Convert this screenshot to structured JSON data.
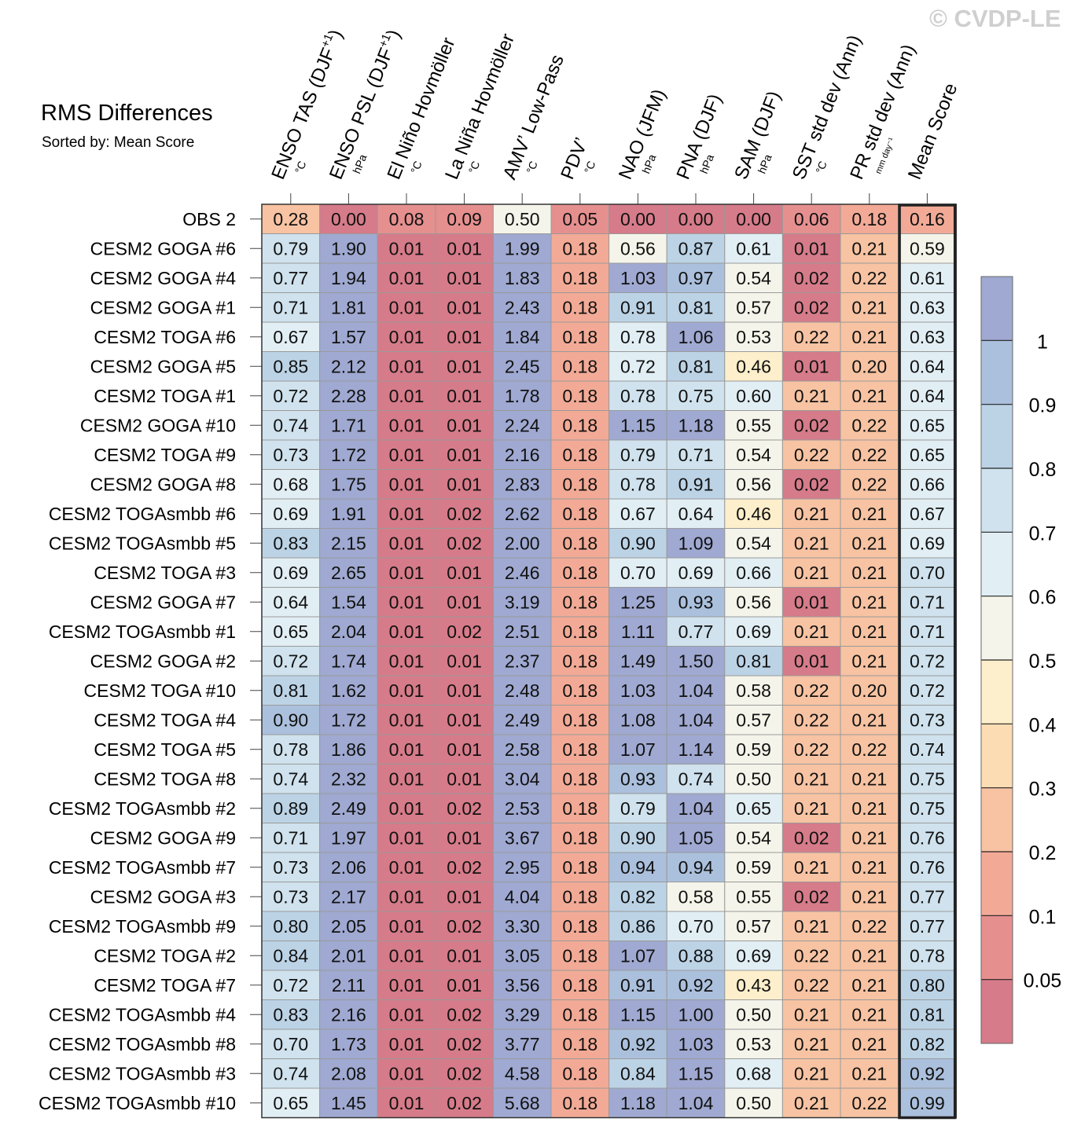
{
  "title": "RMS Differences",
  "subtitle": "Sorted by: Mean Score",
  "copyright": "© CVDP-LE",
  "chart_data": {
    "type": "heatmap",
    "title": "RMS Differences",
    "subtitle": "Sorted by: Mean Score",
    "columns": [
      {
        "label": "ENSO TAS (DJF",
        "sup": "+1",
        "close": ")",
        "unit": "°C"
      },
      {
        "label": "ENSO PSL (DJF",
        "sup": "+1",
        "close": ")",
        "unit": "hPa"
      },
      {
        "label": "El Niño Hovmöller",
        "sup": "",
        "close": "",
        "unit": "°C"
      },
      {
        "label": "La Niña Hovmöller",
        "sup": "",
        "close": "",
        "unit": "°C"
      },
      {
        "label": "AMV’ Low-Pass",
        "sup": "",
        "close": "",
        "unit": "°C"
      },
      {
        "label": "PDV’",
        "sup": "",
        "close": "",
        "unit": "°C"
      },
      {
        "label": "NAO (JFM)",
        "sup": "",
        "close": "",
        "unit": "hPa"
      },
      {
        "label": "PNA (DJF)",
        "sup": "",
        "close": "",
        "unit": "hPa"
      },
      {
        "label": "SAM (DJF)",
        "sup": "",
        "close": "",
        "unit": "hPa"
      },
      {
        "label": "SST std dev (Ann)",
        "sup": "",
        "close": "",
        "unit": "°C"
      },
      {
        "label": "PR std dev (Ann)",
        "sup": "",
        "close": "",
        "unit": "mm day⁻¹"
      },
      {
        "label": "Mean Score",
        "sup": "",
        "close": "",
        "unit": ""
      }
    ],
    "rows": [
      {
        "name": "OBS 2",
        "values": [
          0.28,
          0.0,
          0.08,
          0.09,
          0.5,
          0.05,
          0.0,
          0.0,
          0.0,
          0.06,
          0.18,
          0.16
        ],
        "scores": [
          0.25,
          0.02,
          0.08,
          0.09,
          0.52,
          0.06,
          0.02,
          0.02,
          0.02,
          0.06,
          0.18,
          0.16
        ]
      },
      {
        "name": "CESM2 GOGA #6",
        "values": [
          0.79,
          1.9,
          0.01,
          0.01,
          1.99,
          0.18,
          0.56,
          0.87,
          0.61,
          0.01,
          0.21,
          0.59
        ],
        "scores": [
          0.78,
          1.2,
          0.02,
          0.02,
          1.2,
          0.18,
          0.55,
          0.85,
          0.62,
          0.02,
          0.25,
          0.55
        ]
      },
      {
        "name": "CESM2 GOGA #4",
        "values": [
          0.77,
          1.94,
          0.01,
          0.01,
          1.83,
          0.18,
          1.03,
          0.97,
          0.54,
          0.02,
          0.22,
          0.61
        ],
        "scores": [
          0.78,
          1.2,
          0.02,
          0.02,
          1.2,
          0.18,
          1.05,
          0.95,
          0.55,
          0.02,
          0.25,
          0.62
        ]
      },
      {
        "name": "CESM2 GOGA #1",
        "values": [
          0.71,
          1.81,
          0.01,
          0.01,
          2.43,
          0.18,
          0.91,
          0.81,
          0.57,
          0.02,
          0.21,
          0.63
        ],
        "scores": [
          0.75,
          1.2,
          0.02,
          0.02,
          1.2,
          0.18,
          0.85,
          0.8,
          0.55,
          0.02,
          0.25,
          0.62
        ]
      },
      {
        "name": "CESM2 TOGA #6",
        "values": [
          0.67,
          1.57,
          0.01,
          0.01,
          1.84,
          0.18,
          0.78,
          1.06,
          0.53,
          0.22,
          0.21,
          0.63
        ],
        "scores": [
          0.65,
          1.2,
          0.02,
          0.02,
          1.2,
          0.18,
          0.65,
          1.05,
          0.55,
          0.25,
          0.25,
          0.62
        ]
      },
      {
        "name": "CESM2 GOGA #5",
        "values": [
          0.85,
          2.12,
          0.01,
          0.01,
          2.45,
          0.18,
          0.72,
          0.81,
          0.46,
          0.01,
          0.2,
          0.64
        ],
        "scores": [
          0.85,
          1.2,
          0.02,
          0.02,
          1.2,
          0.18,
          0.65,
          0.8,
          0.45,
          0.02,
          0.25,
          0.62
        ]
      },
      {
        "name": "CESM2 TOGA #1",
        "values": [
          0.72,
          2.28,
          0.01,
          0.01,
          1.78,
          0.18,
          0.78,
          0.75,
          0.6,
          0.21,
          0.21,
          0.64
        ],
        "scores": [
          0.75,
          1.2,
          0.02,
          0.02,
          1.2,
          0.18,
          0.75,
          0.75,
          0.65,
          0.25,
          0.25,
          0.62
        ]
      },
      {
        "name": "CESM2 GOGA #10",
        "values": [
          0.74,
          1.71,
          0.01,
          0.01,
          2.24,
          0.18,
          1.15,
          1.18,
          0.55,
          0.02,
          0.22,
          0.65
        ],
        "scores": [
          0.75,
          1.2,
          0.02,
          0.02,
          1.2,
          0.18,
          1.05,
          1.05,
          0.55,
          0.02,
          0.25,
          0.65
        ]
      },
      {
        "name": "CESM2 TOGA #9",
        "values": [
          0.73,
          1.72,
          0.01,
          0.01,
          2.16,
          0.18,
          0.79,
          0.71,
          0.54,
          0.22,
          0.22,
          0.65
        ],
        "scores": [
          0.75,
          1.2,
          0.02,
          0.02,
          1.2,
          0.18,
          0.75,
          0.75,
          0.55,
          0.25,
          0.25,
          0.65
        ]
      },
      {
        "name": "CESM2 GOGA #8",
        "values": [
          0.68,
          1.75,
          0.01,
          0.01,
          2.83,
          0.18,
          0.78,
          0.91,
          0.56,
          0.02,
          0.22,
          0.66
        ],
        "scores": [
          0.65,
          1.2,
          0.02,
          0.02,
          1.2,
          0.18,
          0.75,
          0.85,
          0.55,
          0.02,
          0.25,
          0.65
        ]
      },
      {
        "name": "CESM2 TOGAsmbb #6",
        "values": [
          0.69,
          1.91,
          0.01,
          0.02,
          2.62,
          0.18,
          0.67,
          0.64,
          0.46,
          0.21,
          0.21,
          0.67
        ],
        "scores": [
          0.65,
          1.2,
          0.02,
          0.02,
          1.2,
          0.18,
          0.65,
          0.65,
          0.45,
          0.25,
          0.25,
          0.65
        ]
      },
      {
        "name": "CESM2 TOGAsmbb #5",
        "values": [
          0.83,
          2.15,
          0.01,
          0.02,
          2.0,
          0.18,
          0.9,
          1.09,
          0.54,
          0.21,
          0.21,
          0.69
        ],
        "scores": [
          0.85,
          1.2,
          0.02,
          0.02,
          1.2,
          0.18,
          0.85,
          1.05,
          0.55,
          0.25,
          0.25,
          0.65
        ]
      },
      {
        "name": "CESM2 TOGA #3",
        "values": [
          0.69,
          2.65,
          0.01,
          0.01,
          2.46,
          0.18,
          0.7,
          0.69,
          0.66,
          0.21,
          0.21,
          0.7
        ],
        "scores": [
          0.65,
          1.2,
          0.02,
          0.02,
          1.2,
          0.18,
          0.65,
          0.65,
          0.65,
          0.25,
          0.25,
          0.75
        ]
      },
      {
        "name": "CESM2 GOGA #7",
        "values": [
          0.64,
          1.54,
          0.01,
          0.01,
          3.19,
          0.18,
          1.25,
          0.93,
          0.56,
          0.01,
          0.21,
          0.71
        ],
        "scores": [
          0.65,
          1.2,
          0.02,
          0.02,
          1.2,
          0.18,
          1.05,
          0.95,
          0.55,
          0.02,
          0.25,
          0.75
        ]
      },
      {
        "name": "CESM2 TOGAsmbb #1",
        "values": [
          0.65,
          2.04,
          0.01,
          0.02,
          2.51,
          0.18,
          1.11,
          0.77,
          0.69,
          0.21,
          0.21,
          0.71
        ],
        "scores": [
          0.65,
          1.2,
          0.02,
          0.02,
          1.2,
          0.18,
          1.05,
          0.75,
          0.65,
          0.25,
          0.25,
          0.75
        ]
      },
      {
        "name": "CESM2 GOGA #2",
        "values": [
          0.72,
          1.74,
          0.01,
          0.01,
          2.37,
          0.18,
          1.49,
          1.5,
          0.81,
          0.01,
          0.21,
          0.72
        ],
        "scores": [
          0.75,
          1.2,
          0.02,
          0.02,
          1.2,
          0.18,
          1.05,
          1.05,
          0.85,
          0.02,
          0.25,
          0.75
        ]
      },
      {
        "name": "CESM2 TOGA #10",
        "values": [
          0.81,
          1.62,
          0.01,
          0.01,
          2.48,
          0.18,
          1.03,
          1.04,
          0.58,
          0.22,
          0.2,
          0.72
        ],
        "scores": [
          0.85,
          1.2,
          0.02,
          0.02,
          1.2,
          0.18,
          1.05,
          1.05,
          0.55,
          0.25,
          0.25,
          0.75
        ]
      },
      {
        "name": "CESM2 TOGA #4",
        "values": [
          0.9,
          1.72,
          0.01,
          0.01,
          2.49,
          0.18,
          1.08,
          1.04,
          0.57,
          0.22,
          0.21,
          0.73
        ],
        "scores": [
          0.95,
          1.2,
          0.02,
          0.02,
          1.2,
          0.18,
          1.05,
          1.05,
          0.55,
          0.25,
          0.25,
          0.75
        ]
      },
      {
        "name": "CESM2 TOGA #5",
        "values": [
          0.78,
          1.86,
          0.01,
          0.01,
          2.58,
          0.18,
          1.07,
          1.14,
          0.59,
          0.22,
          0.22,
          0.74
        ],
        "scores": [
          0.75,
          1.2,
          0.02,
          0.02,
          1.2,
          0.18,
          1.05,
          1.05,
          0.55,
          0.25,
          0.25,
          0.75
        ]
      },
      {
        "name": "CESM2 TOGA #8",
        "values": [
          0.74,
          2.32,
          0.01,
          0.01,
          3.04,
          0.18,
          0.93,
          0.74,
          0.5,
          0.21,
          0.21,
          0.75
        ],
        "scores": [
          0.75,
          1.2,
          0.02,
          0.02,
          1.2,
          0.18,
          0.95,
          0.75,
          0.55,
          0.25,
          0.25,
          0.75
        ]
      },
      {
        "name": "CESM2 TOGAsmbb #2",
        "values": [
          0.89,
          2.49,
          0.01,
          0.02,
          2.53,
          0.18,
          0.79,
          1.04,
          0.65,
          0.21,
          0.21,
          0.75
        ],
        "scores": [
          0.85,
          1.2,
          0.02,
          0.02,
          1.2,
          0.18,
          0.75,
          1.05,
          0.65,
          0.25,
          0.25,
          0.75
        ]
      },
      {
        "name": "CESM2 GOGA #9",
        "values": [
          0.71,
          1.97,
          0.01,
          0.01,
          3.67,
          0.18,
          0.9,
          1.05,
          0.54,
          0.02,
          0.21,
          0.76
        ],
        "scores": [
          0.75,
          1.2,
          0.02,
          0.02,
          1.2,
          0.18,
          0.85,
          1.05,
          0.55,
          0.02,
          0.25,
          0.75
        ]
      },
      {
        "name": "CESM2 TOGAsmbb #7",
        "values": [
          0.73,
          2.06,
          0.01,
          0.02,
          2.95,
          0.18,
          0.94,
          0.94,
          0.59,
          0.21,
          0.21,
          0.76
        ],
        "scores": [
          0.75,
          1.2,
          0.02,
          0.02,
          1.2,
          0.18,
          0.95,
          0.95,
          0.55,
          0.25,
          0.25,
          0.75
        ]
      },
      {
        "name": "CESM2 GOGA #3",
        "values": [
          0.73,
          2.17,
          0.01,
          0.01,
          4.04,
          0.18,
          0.82,
          0.58,
          0.55,
          0.02,
          0.21,
          0.77
        ],
        "scores": [
          0.75,
          1.2,
          0.02,
          0.02,
          1.2,
          0.18,
          0.85,
          0.55,
          0.55,
          0.02,
          0.25,
          0.75
        ]
      },
      {
        "name": "CESM2 TOGAsmbb #9",
        "values": [
          0.8,
          2.05,
          0.01,
          0.02,
          3.3,
          0.18,
          0.86,
          0.7,
          0.57,
          0.21,
          0.22,
          0.77
        ],
        "scores": [
          0.85,
          1.2,
          0.02,
          0.02,
          1.2,
          0.18,
          0.85,
          0.65,
          0.55,
          0.25,
          0.25,
          0.75
        ]
      },
      {
        "name": "CESM2 TOGA #2",
        "values": [
          0.84,
          2.01,
          0.01,
          0.01,
          3.05,
          0.18,
          1.07,
          0.88,
          0.69,
          0.22,
          0.21,
          0.78
        ],
        "scores": [
          0.85,
          1.2,
          0.02,
          0.02,
          1.2,
          0.18,
          1.05,
          0.85,
          0.65,
          0.25,
          0.25,
          0.75
        ]
      },
      {
        "name": "CESM2 TOGA #7",
        "values": [
          0.72,
          2.11,
          0.01,
          0.01,
          3.56,
          0.18,
          0.91,
          0.92,
          0.43,
          0.22,
          0.21,
          0.8
        ],
        "scores": [
          0.75,
          1.2,
          0.02,
          0.02,
          1.2,
          0.18,
          0.95,
          0.95,
          0.45,
          0.25,
          0.25,
          0.85
        ]
      },
      {
        "name": "CESM2 TOGAsmbb #4",
        "values": [
          0.83,
          2.16,
          0.01,
          0.02,
          3.29,
          0.18,
          1.15,
          1.0,
          0.5,
          0.21,
          0.21,
          0.81
        ],
        "scores": [
          0.85,
          1.2,
          0.02,
          0.02,
          1.2,
          0.18,
          1.05,
          1.05,
          0.55,
          0.25,
          0.25,
          0.85
        ]
      },
      {
        "name": "CESM2 TOGAsmbb #8",
        "values": [
          0.7,
          1.73,
          0.01,
          0.02,
          3.77,
          0.18,
          0.92,
          1.03,
          0.53,
          0.21,
          0.21,
          0.82
        ],
        "scores": [
          0.75,
          1.2,
          0.02,
          0.02,
          1.2,
          0.18,
          0.95,
          1.05,
          0.55,
          0.25,
          0.25,
          0.85
        ]
      },
      {
        "name": "CESM2 TOGAsmbb #3",
        "values": [
          0.74,
          2.08,
          0.01,
          0.02,
          4.58,
          0.18,
          0.84,
          1.15,
          0.68,
          0.21,
          0.21,
          0.92
        ],
        "scores": [
          0.75,
          1.2,
          0.02,
          0.02,
          1.2,
          0.18,
          0.85,
          1.05,
          0.65,
          0.25,
          0.25,
          0.95
        ]
      },
      {
        "name": "CESM2 TOGAsmbb #10",
        "values": [
          0.65,
          1.45,
          0.01,
          0.02,
          5.68,
          0.18,
          1.18,
          1.04,
          0.5,
          0.21,
          0.22,
          0.99
        ],
        "scores": [
          0.65,
          1.2,
          0.02,
          0.02,
          1.2,
          0.18,
          1.05,
          1.05,
          0.55,
          0.25,
          0.25,
          0.95
        ]
      }
    ],
    "colorbar": {
      "tick_labels": [
        "1",
        "0.9",
        "0.8",
        "0.7",
        "0.6",
        "0.5",
        "0.4",
        "0.3",
        "0.2",
        "0.1",
        "0.05"
      ],
      "colors": [
        "#9fa9d1",
        "#abc0dc",
        "#bcd3e6",
        "#cfe2ed",
        "#e1eef4",
        "#f4f4ea",
        "#fdefcb",
        "#fcdcb3",
        "#f7c3a2",
        "#f2aa96",
        "#e68f8f",
        "#d67b89"
      ]
    }
  }
}
